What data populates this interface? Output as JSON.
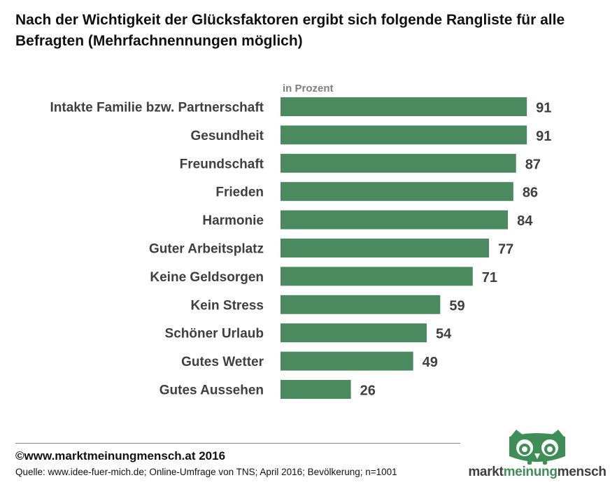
{
  "title": "Nach der Wichtigkeit der Glücksfaktoren ergibt sich folgende Rangliste für alle Befragten (Mehrfachnennungen möglich)",
  "footer": {
    "copyright": "©www.marktmeinungmensch.at 2016",
    "source": "Quelle: www.idee-fuer-mich.de; Online-Umfrage von TNS; April 2016; Bevölkerung; n=1001"
  },
  "logo": {
    "word1": "markt",
    "word2": "meinung",
    "word3": "mensch",
    "icon": "owl-icon"
  },
  "colors": {
    "bar": "#4a8a5e",
    "label": "#3f3f3f",
    "unit": "#7f7f7f",
    "logo_green": "#3f8e57"
  },
  "chart_data": {
    "type": "bar",
    "orientation": "horizontal",
    "unit_label": "in Prozent",
    "categories": [
      "Intakte Familie bzw. Partnerschaft",
      "Gesundheit",
      "Freundschaft",
      "Frieden",
      "Harmonie",
      "Guter Arbeitsplatz",
      "Keine Geldsorgen",
      "Kein Stress",
      "Schöner Urlaub",
      "Gutes Wetter",
      "Gutes Aussehen"
    ],
    "values": [
      91,
      91,
      87,
      86,
      84,
      77,
      71,
      59,
      54,
      49,
      26
    ],
    "xlim": [
      0,
      100
    ],
    "grid": false,
    "data_labels": true
  }
}
